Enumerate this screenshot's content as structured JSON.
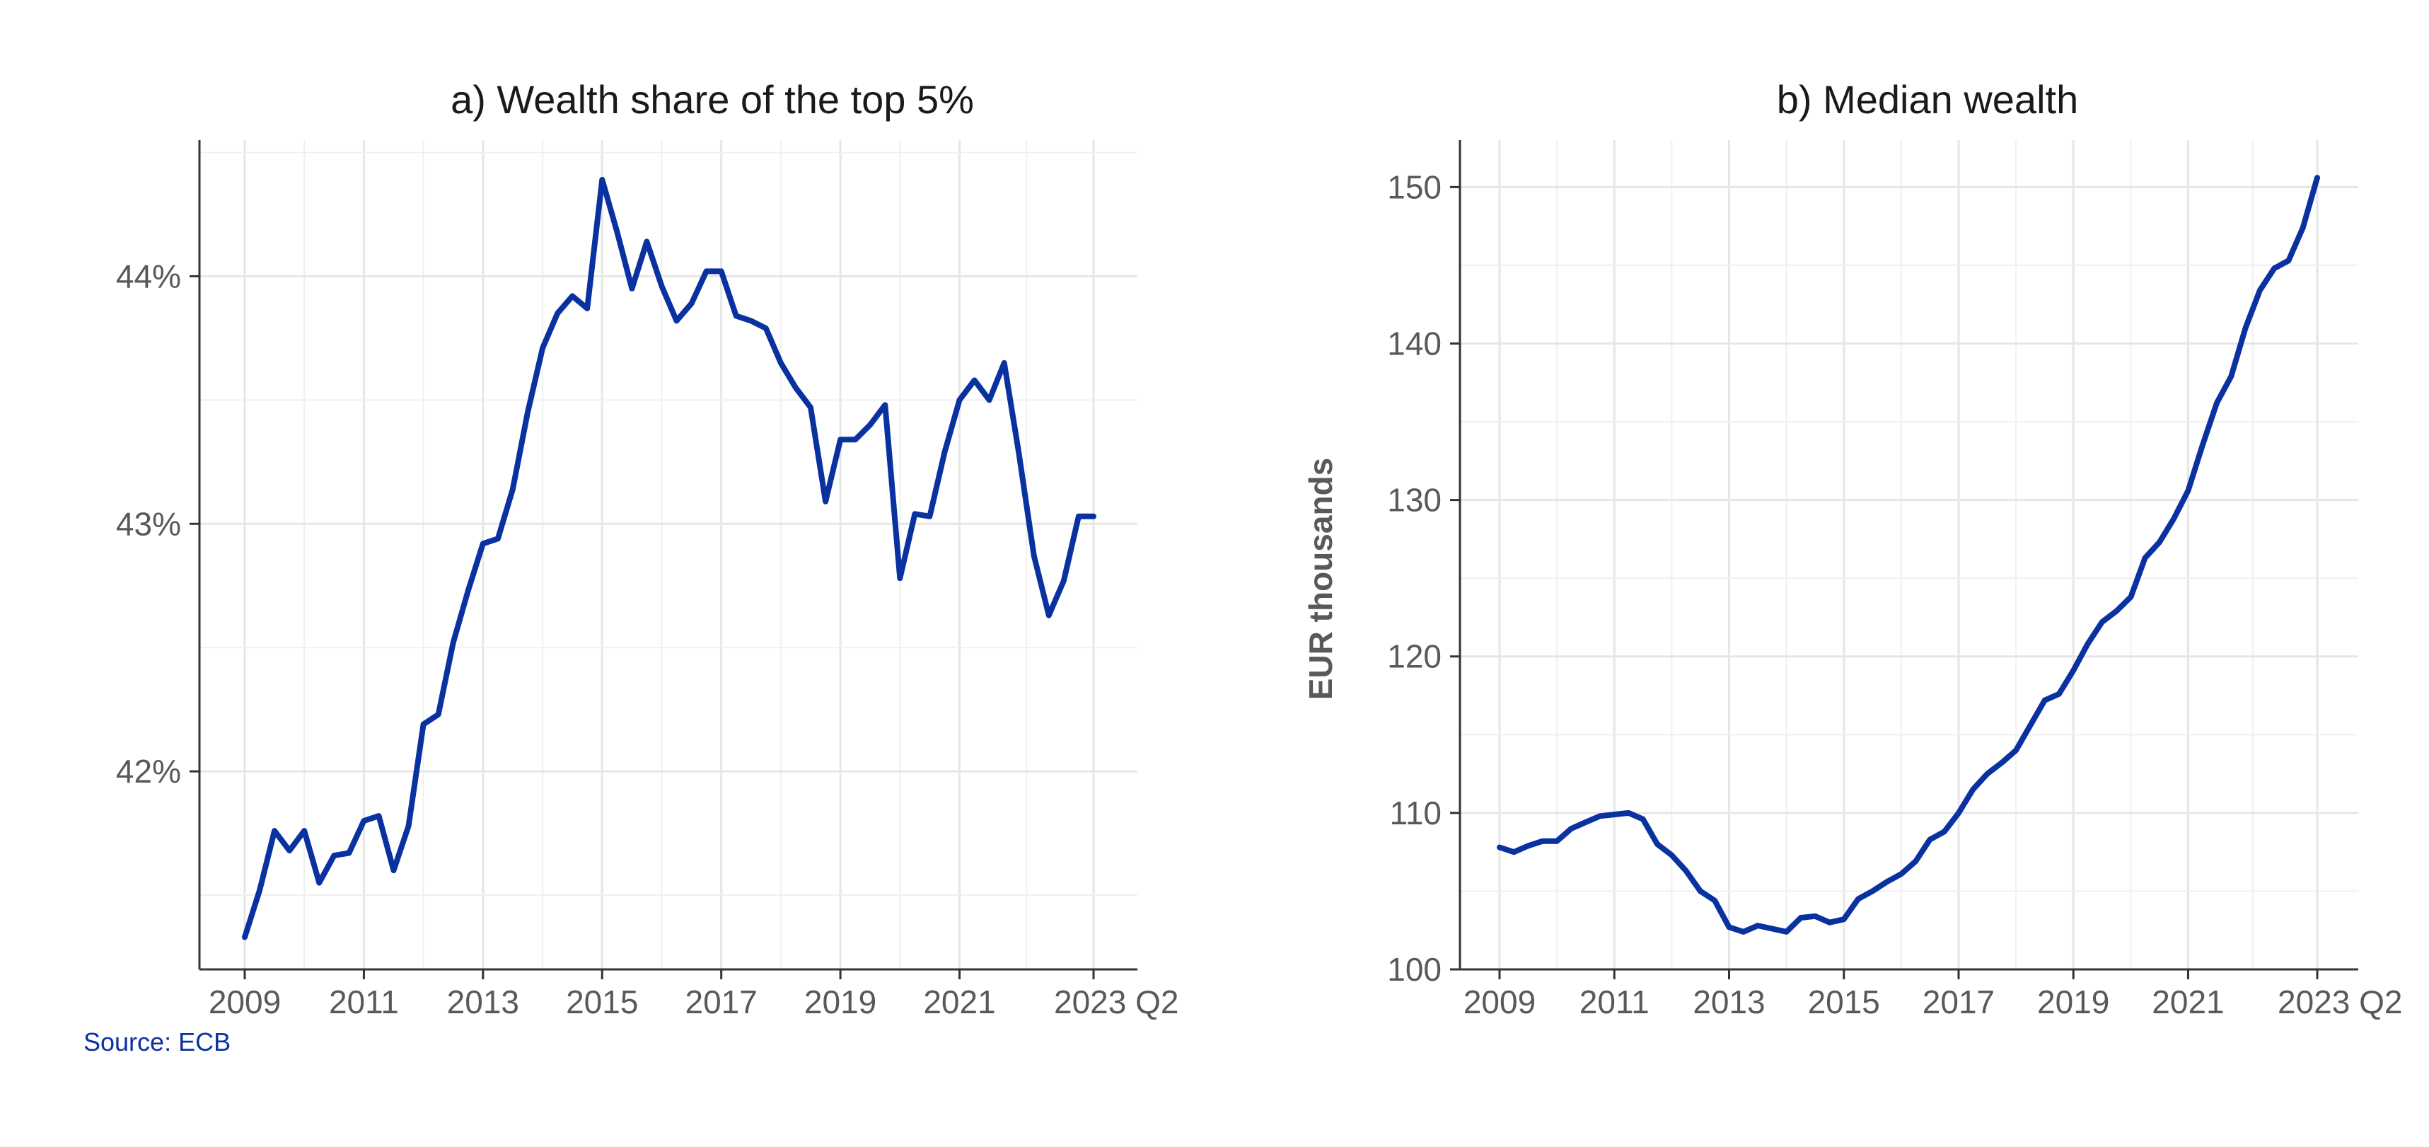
{
  "source": "Source: ECB",
  "chart_data": [
    {
      "type": "line",
      "title": "a) Wealth share of the top 5%",
      "xlabel": "",
      "ylabel": "",
      "x_tick_labels": [
        "2009",
        "2011",
        "2013",
        "2015",
        "2017",
        "2019",
        "2021",
        "2023 Q2"
      ],
      "y_tick_labels": [
        "42%",
        "43%",
        "44%"
      ],
      "ylim": [
        41.2,
        44.55
      ],
      "grid": true,
      "series": [
        {
          "values": [
            41.33,
            41.52,
            41.76,
            41.68,
            41.76,
            41.55,
            41.66,
            41.67,
            41.8,
            41.82,
            41.6,
            41.78,
            42.19,
            42.23,
            42.52,
            42.73,
            42.92,
            42.94,
            43.14,
            43.45,
            43.71,
            43.85,
            43.92,
            43.87,
            44.39,
            44.18,
            43.95,
            44.14,
            43.96,
            43.82,
            43.89,
            44.02,
            44.02,
            43.84,
            43.82,
            43.79,
            43.65,
            43.55,
            43.47,
            43.09,
            43.34,
            43.34,
            43.4,
            43.48,
            42.78,
            43.04,
            43.03,
            43.29,
            43.5,
            43.58,
            43.5,
            43.65,
            43.28,
            42.87,
            42.63,
            42.77,
            43.03,
            43.03
          ],
          "color": "#0a31a0"
        }
      ]
    },
    {
      "type": "line",
      "title": "b) Median wealth",
      "xlabel": "",
      "ylabel": "EUR thousands",
      "x_tick_labels": [
        "2009",
        "2011",
        "2013",
        "2015",
        "2017",
        "2019",
        "2021",
        "2023 Q2"
      ],
      "y_tick_labels": [
        "100",
        "110",
        "120",
        "130",
        "140",
        "150"
      ],
      "ylim": [
        100,
        153
      ],
      "grid": true,
      "series": [
        {
          "values": [
            107.8,
            107.5,
            107.9,
            108.2,
            108.2,
            109.0,
            109.4,
            109.8,
            109.9,
            110.0,
            109.6,
            108.0,
            107.3,
            106.3,
            105.0,
            104.4,
            102.7,
            102.4,
            102.8,
            102.6,
            102.4,
            103.3,
            103.4,
            103.0,
            103.2,
            104.5,
            105.0,
            105.6,
            106.1,
            106.9,
            108.3,
            108.8,
            110.0,
            111.5,
            112.5,
            113.2,
            114.0,
            115.6,
            117.2,
            117.6,
            119.1,
            120.8,
            122.2,
            122.9,
            123.8,
            126.3,
            127.3,
            128.8,
            130.6,
            133.5,
            136.2,
            137.9,
            141.0,
            143.4,
            144.8,
            145.3,
            147.4,
            150.6
          ],
          "color": "#0a31a0"
        }
      ]
    }
  ]
}
